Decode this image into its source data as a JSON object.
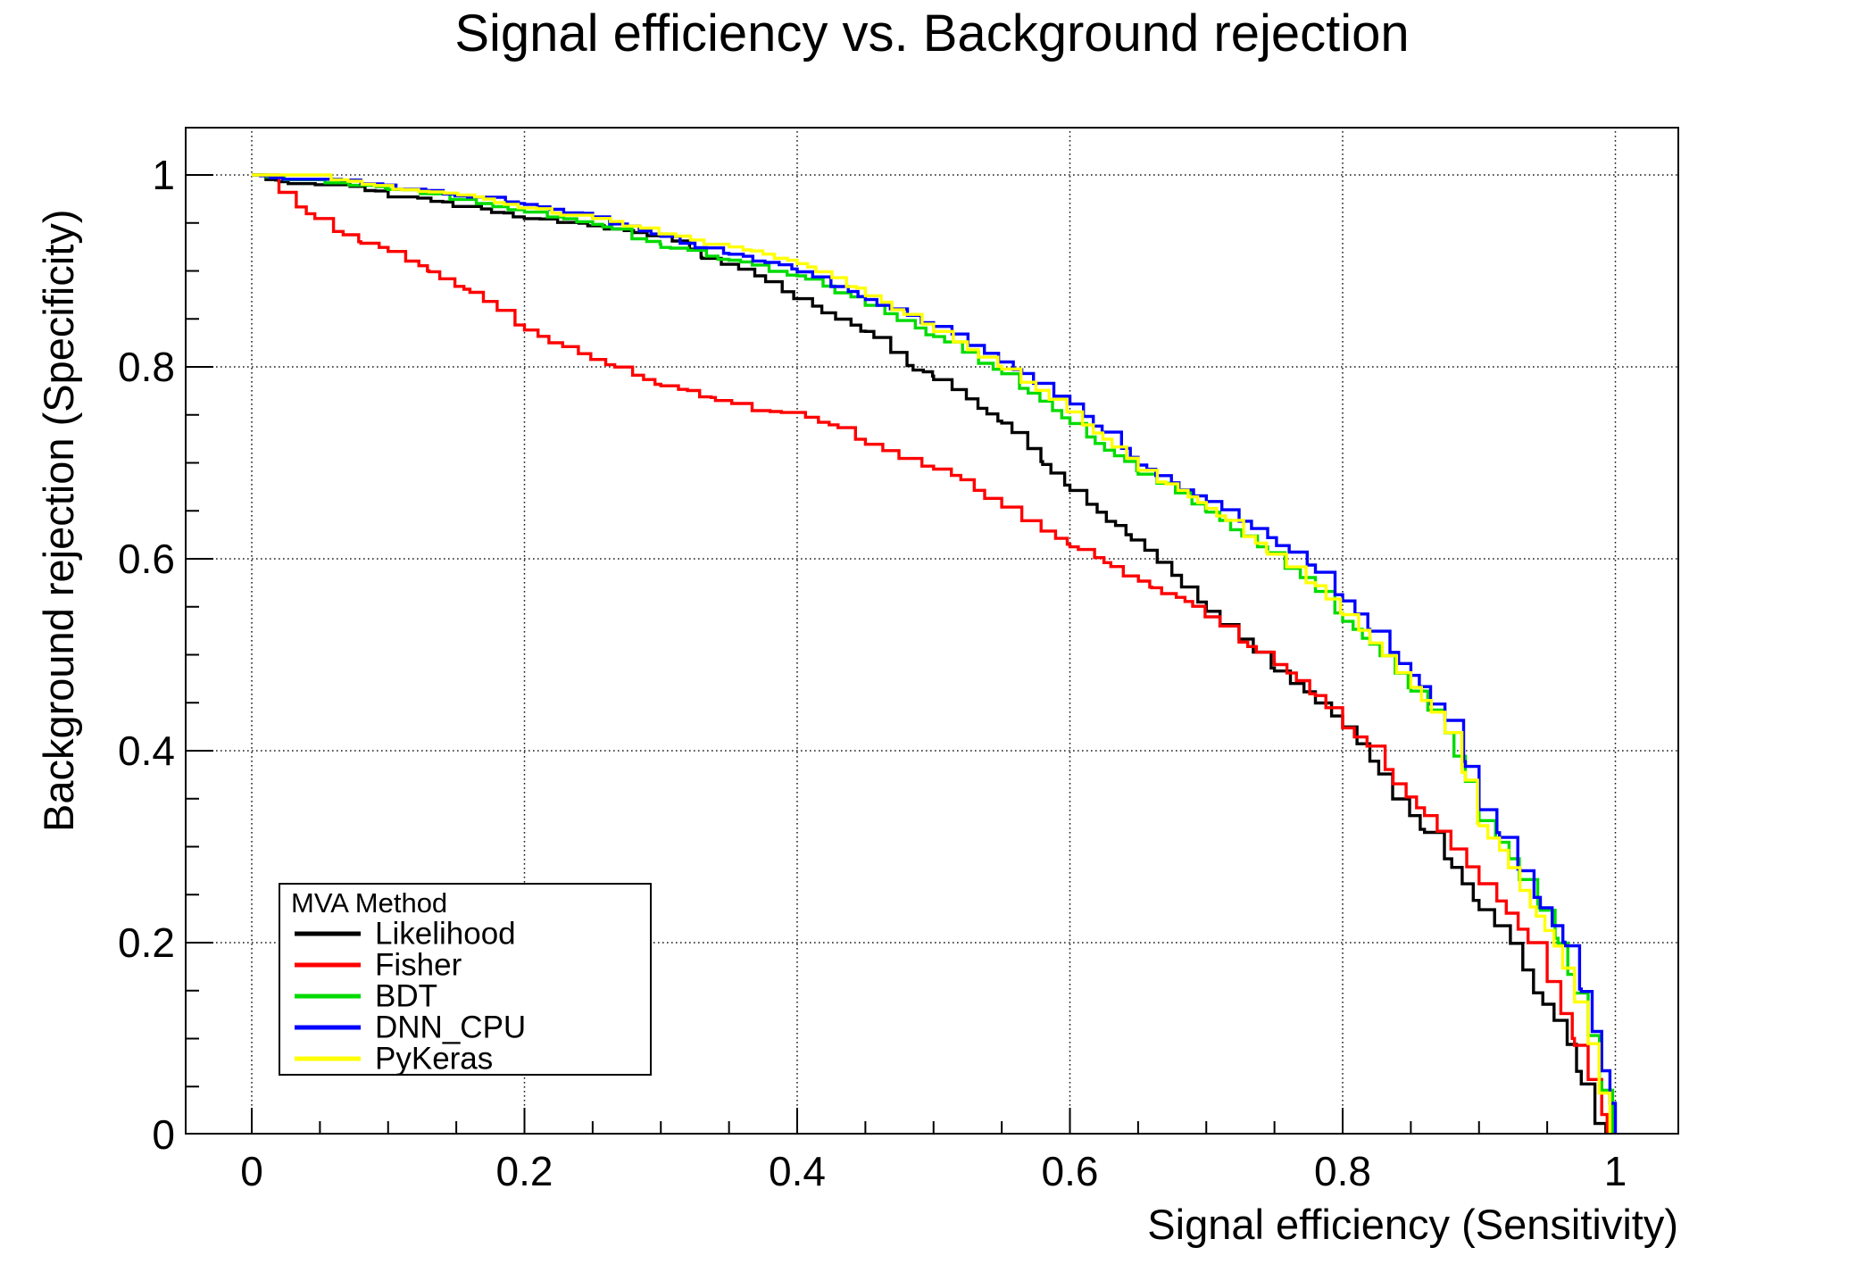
{
  "title": "Signal efficiency vs. Background rejection",
  "axes": {
    "x_label": "Signal efficiency (Sensitivity)",
    "y_label": "Background rejection (Specificity)",
    "x_ticks": [
      "0",
      "0.2",
      "0.4",
      "0.6",
      "0.8",
      "1"
    ],
    "y_ticks": [
      "0",
      "0.2",
      "0.4",
      "0.6",
      "0.8",
      "1"
    ]
  },
  "legend": {
    "header": "MVA Method",
    "entries": [
      {
        "label": "Likelihood",
        "color": "#000000"
      },
      {
        "label": "Fisher",
        "color": "#ff0000"
      },
      {
        "label": "BDT",
        "color": "#00db00"
      },
      {
        "label": "DNN_CPU",
        "color": "#0000ff"
      },
      {
        "label": "PyKeras",
        "color": "#ffff00"
      }
    ]
  },
  "chart_data": {
    "type": "line",
    "title": "Signal efficiency vs. Background rejection",
    "xlabel": "Signal efficiency (Sensitivity)",
    "ylabel": "Background rejection (Specificity)",
    "xlim": [
      -0.049,
      1.047
    ],
    "ylim": [
      0,
      1.05
    ],
    "x_tick_values": [
      0,
      0.2,
      0.4,
      0.6,
      0.8,
      1.0
    ],
    "y_tick_values": [
      0,
      0.2,
      0.4,
      0.6,
      0.8,
      1.0
    ],
    "minor_tick_step": 0.05,
    "grid": true,
    "grid_style": "dotted",
    "legend_position": "bottom-left",
    "curve_style": "staircase",
    "series": [
      {
        "name": "Likelihood",
        "color": "#000000",
        "points": [
          [
            0,
            1
          ],
          [
            0.02,
            0.995
          ],
          [
            0.06,
            0.992
          ],
          [
            0.1,
            0.981
          ],
          [
            0.14,
            0.973
          ],
          [
            0.2,
            0.958
          ],
          [
            0.24,
            0.95
          ],
          [
            0.28,
            0.942
          ],
          [
            0.3,
            0.938
          ],
          [
            0.33,
            0.917
          ],
          [
            0.36,
            0.903
          ],
          [
            0.4,
            0.873
          ],
          [
            0.45,
            0.838
          ],
          [
            0.485,
            0.8
          ],
          [
            0.5,
            0.79
          ],
          [
            0.55,
            0.742
          ],
          [
            0.58,
            0.7
          ],
          [
            0.6,
            0.675
          ],
          [
            0.62,
            0.65
          ],
          [
            0.645,
            0.622
          ],
          [
            0.664,
            0.6
          ],
          [
            0.7,
            0.548
          ],
          [
            0.724,
            0.518
          ],
          [
            0.75,
            0.487
          ],
          [
            0.78,
            0.452
          ],
          [
            0.8,
            0.428
          ],
          [
            0.82,
            0.392
          ],
          [
            0.837,
            0.353
          ],
          [
            0.86,
            0.315
          ],
          [
            0.88,
            0.28
          ],
          [
            0.9,
            0.238
          ],
          [
            0.923,
            0.2
          ],
          [
            0.94,
            0.15
          ],
          [
            0.955,
            0.12
          ],
          [
            0.965,
            0.095
          ],
          [
            0.975,
            0.055
          ],
          [
            0.985,
            0.012
          ],
          [
            0.993,
            0.004
          ],
          [
            0.997,
            0
          ]
        ]
      },
      {
        "name": "Fisher",
        "color": "#ff0000",
        "points": [
          [
            0,
            1
          ],
          [
            0.012,
            1
          ],
          [
            0.02,
            0.982
          ],
          [
            0.04,
            0.96
          ],
          [
            0.06,
            0.945
          ],
          [
            0.08,
            0.93
          ],
          [
            0.1,
            0.922
          ],
          [
            0.13,
            0.9
          ],
          [
            0.16,
            0.88
          ],
          [
            0.18,
            0.862
          ],
          [
            0.2,
            0.839
          ],
          [
            0.24,
            0.816
          ],
          [
            0.28,
            0.795
          ],
          [
            0.3,
            0.783
          ],
          [
            0.34,
            0.768
          ],
          [
            0.37,
            0.757
          ],
          [
            0.4,
            0.754
          ],
          [
            0.43,
            0.738
          ],
          [
            0.45,
            0.722
          ],
          [
            0.48,
            0.705
          ],
          [
            0.5,
            0.695
          ],
          [
            0.52,
            0.683
          ],
          [
            0.55,
            0.655
          ],
          [
            0.58,
            0.632
          ],
          [
            0.6,
            0.616
          ],
          [
            0.63,
            0.592
          ],
          [
            0.66,
            0.57
          ],
          [
            0.69,
            0.553
          ],
          [
            0.71,
            0.532
          ],
          [
            0.724,
            0.516
          ],
          [
            0.75,
            0.492
          ],
          [
            0.78,
            0.458
          ],
          [
            0.8,
            0.426
          ],
          [
            0.82,
            0.405
          ],
          [
            0.837,
            0.368
          ],
          [
            0.86,
            0.335
          ],
          [
            0.88,
            0.3
          ],
          [
            0.9,
            0.265
          ],
          [
            0.92,
            0.232
          ],
          [
            0.936,
            0.2
          ],
          [
            0.95,
            0.162
          ],
          [
            0.96,
            0.13
          ],
          [
            0.97,
            0.096
          ],
          [
            0.98,
            0.06
          ],
          [
            0.99,
            0.022
          ],
          [
            0.994,
            0
          ]
        ]
      },
      {
        "name": "BDT",
        "color": "#00db00",
        "points": [
          [
            0,
            1
          ],
          [
            0.03,
            0.998
          ],
          [
            0.06,
            0.995
          ],
          [
            0.1,
            0.988
          ],
          [
            0.15,
            0.977
          ],
          [
            0.2,
            0.964
          ],
          [
            0.25,
            0.95
          ],
          [
            0.3,
            0.928
          ],
          [
            0.35,
            0.912
          ],
          [
            0.4,
            0.897
          ],
          [
            0.45,
            0.868
          ],
          [
            0.5,
            0.833
          ],
          [
            0.55,
            0.794
          ],
          [
            0.6,
            0.742
          ],
          [
            0.65,
            0.692
          ],
          [
            0.7,
            0.65
          ],
          [
            0.745,
            0.608
          ],
          [
            0.78,
            0.568
          ],
          [
            0.8,
            0.538
          ],
          [
            0.82,
            0.512
          ],
          [
            0.85,
            0.465
          ],
          [
            0.875,
            0.42
          ],
          [
            0.89,
            0.37
          ],
          [
            0.9,
            0.33
          ],
          [
            0.915,
            0.305
          ],
          [
            0.93,
            0.268
          ],
          [
            0.945,
            0.235
          ],
          [
            0.958,
            0.2
          ],
          [
            0.97,
            0.15
          ],
          [
            0.98,
            0.105
          ],
          [
            0.99,
            0.048
          ],
          [
            0.998,
            0
          ]
        ]
      },
      {
        "name": "DNN_CPU",
        "color": "#0000ff",
        "points": [
          [
            0,
            1
          ],
          [
            0.04,
            0.999
          ],
          [
            0.08,
            0.993
          ],
          [
            0.12,
            0.986
          ],
          [
            0.16,
            0.979
          ],
          [
            0.2,
            0.972
          ],
          [
            0.25,
            0.958
          ],
          [
            0.3,
            0.936
          ],
          [
            0.35,
            0.92
          ],
          [
            0.4,
            0.903
          ],
          [
            0.45,
            0.872
          ],
          [
            0.5,
            0.845
          ],
          [
            0.55,
            0.807
          ],
          [
            0.6,
            0.762
          ],
          [
            0.65,
            0.701
          ],
          [
            0.68,
            0.675
          ],
          [
            0.7,
            0.662
          ],
          [
            0.745,
            0.623
          ],
          [
            0.78,
            0.588
          ],
          [
            0.8,
            0.557
          ],
          [
            0.82,
            0.528
          ],
          [
            0.85,
            0.48
          ],
          [
            0.875,
            0.432
          ],
          [
            0.89,
            0.385
          ],
          [
            0.9,
            0.34
          ],
          [
            0.915,
            0.312
          ],
          [
            0.93,
            0.275
          ],
          [
            0.945,
            0.24
          ],
          [
            0.963,
            0.2
          ],
          [
            0.975,
            0.15
          ],
          [
            0.983,
            0.11
          ],
          [
            0.99,
            0.07
          ],
          [
            0.996,
            0.035
          ],
          [
            1,
            0
          ]
        ]
      },
      {
        "name": "PyKeras",
        "color": "#ffff00",
        "points": [
          [
            0,
            1
          ],
          [
            0.045,
            1
          ],
          [
            0.09,
            0.991
          ],
          [
            0.13,
            0.984
          ],
          [
            0.17,
            0.977
          ],
          [
            0.2,
            0.968
          ],
          [
            0.25,
            0.956
          ],
          [
            0.3,
            0.94
          ],
          [
            0.35,
            0.926
          ],
          [
            0.4,
            0.911
          ],
          [
            0.45,
            0.878
          ],
          [
            0.5,
            0.838
          ],
          [
            0.55,
            0.801
          ],
          [
            0.6,
            0.754
          ],
          [
            0.65,
            0.695
          ],
          [
            0.7,
            0.655
          ],
          [
            0.745,
            0.608
          ],
          [
            0.78,
            0.572
          ],
          [
            0.8,
            0.545
          ],
          [
            0.82,
            0.515
          ],
          [
            0.85,
            0.468
          ],
          [
            0.875,
            0.422
          ],
          [
            0.89,
            0.372
          ],
          [
            0.9,
            0.322
          ],
          [
            0.915,
            0.3
          ],
          [
            0.93,
            0.255
          ],
          [
            0.942,
            0.23
          ],
          [
            0.955,
            0.2
          ],
          [
            0.97,
            0.142
          ],
          [
            0.98,
            0.096
          ],
          [
            0.988,
            0.046
          ],
          [
            0.996,
            0
          ]
        ]
      }
    ]
  }
}
